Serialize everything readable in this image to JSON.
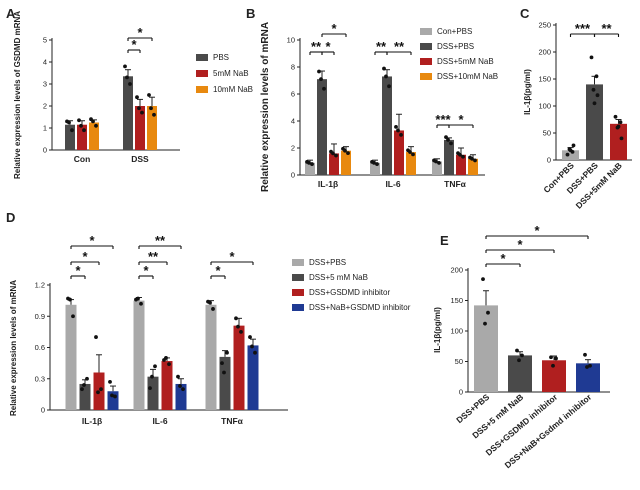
{
  "chart_data": [
    {
      "panel": "A",
      "type": "bar",
      "ylabel": "Relative expression levels of GSDMD mRNA",
      "categories": [
        "Con",
        "DSS"
      ],
      "ylim": [
        0,
        5
      ],
      "yticks": [
        0,
        1,
        2,
        3,
        4,
        5
      ],
      "legend": [
        "PBS",
        "5mM NaB",
        "10mM NaB"
      ],
      "series": [
        {
          "name": "PBS",
          "color": "#4a4a4a",
          "values": [
            1.15,
            3.35
          ],
          "err": [
            0.18,
            0.3
          ],
          "points": [
            [
              1.3,
              0.9,
              1.25
            ],
            [
              3.8,
              3.0,
              3.3
            ]
          ]
        },
        {
          "name": "5mM NaB",
          "color": "#b01f1f",
          "values": [
            1.15,
            2.0
          ],
          "err": [
            0.18,
            0.3
          ],
          "points": [
            [
              1.35,
              0.9,
              1.1
            ],
            [
              2.4,
              1.7,
              1.9
            ]
          ]
        },
        {
          "name": "10mM NaB",
          "color": "#e8890f",
          "values": [
            1.25,
            2.0
          ],
          "err": [
            0.12,
            0.4
          ],
          "points": [
            [
              1.4,
              1.1,
              1.3
            ],
            [
              2.5,
              1.6,
              1.9
            ]
          ]
        }
      ],
      "significance": [
        "*",
        "*"
      ]
    },
    {
      "panel": "B",
      "type": "bar",
      "ylabel": "Relative expression levels of mRNA",
      "categories": [
        "IL-1β",
        "IL-6",
        "TNFα"
      ],
      "ylim": [
        0,
        10
      ],
      "yticks": [
        0,
        2,
        4,
        6,
        8,
        10
      ],
      "legend": [
        "Con+PBS",
        "DSS+PBS",
        "DSS+5mM NaB",
        "DSS+10mM NaB"
      ],
      "series": [
        {
          "name": "Con+PBS",
          "color": "#a9a9a9",
          "values": [
            0.9,
            0.9,
            1.0
          ],
          "err": [
            0.2,
            0.2,
            0.2
          ]
        },
        {
          "name": "DSS+PBS",
          "color": "#4a4a4a",
          "values": [
            7.1,
            7.3,
            2.6
          ],
          "err": [
            0.6,
            0.5,
            0.15
          ]
        },
        {
          "name": "DSS+5mM NaB",
          "color": "#b01f1f",
          "values": [
            1.6,
            3.3,
            1.5
          ],
          "err": [
            0.7,
            1.2,
            0.5
          ]
        },
        {
          "name": "DSS+10mM NaB",
          "color": "#e8890f",
          "values": [
            1.8,
            1.7,
            1.2
          ],
          "err": [
            0.3,
            0.4,
            0.3
          ]
        }
      ],
      "significance": [
        "**",
        "*",
        "*",
        "**",
        "**",
        "***",
        "*"
      ]
    },
    {
      "panel": "C",
      "type": "bar",
      "ylabel": "IL-1β(pg/ml)",
      "categories": [
        "Con+PBS",
        "DSS+PBS",
        "DSS+5mM NaB"
      ],
      "ylim": [
        0,
        250
      ],
      "yticks": [
        0,
        50,
        100,
        150,
        200,
        250
      ],
      "series": [
        {
          "name": "IL-1β",
          "colors": [
            "#a9a9a9",
            "#4a4a4a",
            "#b01f1f"
          ],
          "values": [
            18,
            140,
            67
          ],
          "err": [
            5,
            15,
            8
          ],
          "points": [
            [
              10,
              15,
              20,
              27,
              18
            ],
            [
              190,
              155,
              130,
              120,
              105
            ],
            [
              80,
              70,
              60,
              40,
              62
            ]
          ]
        }
      ],
      "significance": [
        "***",
        "**"
      ]
    },
    {
      "panel": "D",
      "type": "bar",
      "ylabel": "Relative expression levels of mRNA",
      "categories": [
        "IL-1β",
        "IL-6",
        "TNFα"
      ],
      "ylim": [
        0,
        1.2
      ],
      "yticks": [
        "0",
        "0.3",
        "0.6",
        "0.9",
        "1.2"
      ],
      "legend": [
        "DSS+PBS",
        "DSS+5 mM NaB",
        "DSS+GSDMD inhibitor",
        "DSS+NaB+GSDMD inhibitor"
      ],
      "series": [
        {
          "name": "DSS+PBS",
          "color": "#a9a9a9",
          "values": [
            1.01,
            1.05,
            1.01
          ],
          "err": [
            0.05,
            0.03,
            0.04
          ],
          "points": [
            [
              1.07,
              0.9,
              1.06
            ],
            [
              1.06,
              1.02,
              1.07
            ],
            [
              1.04,
              0.97,
              1.03
            ]
          ]
        },
        {
          "name": "DSS+5 mM NaB",
          "color": "#4a4a4a",
          "values": [
            0.25,
            0.32,
            0.51
          ],
          "err": [
            0.04,
            0.07,
            0.06
          ],
          "points": [
            [
              0.2,
              0.3,
              0.24
            ],
            [
              0.21,
              0.42,
              0.32
            ],
            [
              0.45,
              0.55,
              0.36
            ]
          ]
        },
        {
          "name": "DSS+GSDMD inhibitor",
          "color": "#b01f1f",
          "values": [
            0.36,
            0.47,
            0.81
          ],
          "err": [
            0.17,
            0.03,
            0.07
          ],
          "points": [
            [
              0.7,
              0.2,
              0.17
            ],
            [
              0.48,
              0.44,
              0.5
            ],
            [
              0.88,
              0.75,
              0.8
            ]
          ]
        },
        {
          "name": "DSS+NaB+GSDMD inhibitor",
          "color": "#1f3a93",
          "values": [
            0.18,
            0.25,
            0.62
          ],
          "err": [
            0.05,
            0.05,
            0.06
          ],
          "points": [
            [
              0.27,
              0.13,
              0.14
            ],
            [
              0.32,
              0.2,
              0.23
            ],
            [
              0.7,
              0.55,
              0.61
            ]
          ]
        }
      ],
      "significance": [
        "*",
        "*",
        "*",
        "*",
        "**",
        "**",
        "*",
        "*"
      ]
    },
    {
      "panel": "E",
      "type": "bar",
      "ylabel": "IL-1β(pg/ml)",
      "categories": [
        "DSS+PBS",
        "DSS+5 mM NaB",
        "DSS+GSDMD inhibitor",
        "DSS+NaB+Gsdmd inhibitor"
      ],
      "ylim": [
        0,
        200
      ],
      "yticks": [
        0,
        50,
        100,
        150,
        200
      ],
      "series": [
        {
          "name": "IL-1β",
          "colors": [
            "#a9a9a9",
            "#4a4a4a",
            "#b01f1f",
            "#1f3a93"
          ],
          "values": [
            142,
            60,
            52,
            47
          ],
          "err": [
            24,
            6,
            7,
            6
          ],
          "points": [
            [
              185,
              130,
              112
            ],
            [
              68,
              60,
              52
            ],
            [
              57,
              55,
              43
            ],
            [
              61,
              43,
              41
            ]
          ]
        }
      ],
      "significance": [
        "*",
        "*",
        "*"
      ]
    }
  ]
}
